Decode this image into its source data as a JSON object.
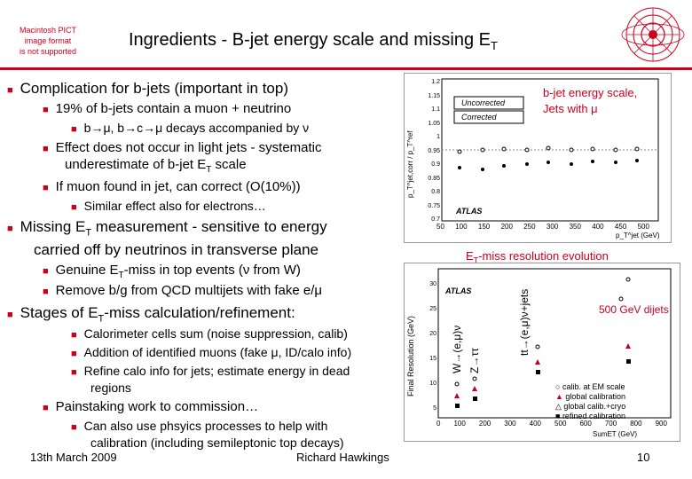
{
  "slide": {
    "title": "Ingredients - B-jet energy scale and missing E",
    "title_sub": "T",
    "logo_text": [
      "Macintosh PICT",
      "image format",
      "is not supported"
    ],
    "bullets": {
      "b1": "Complication for b-jets (important in top)",
      "b1_1": "19% of b-jets contain a muon + neutrino",
      "b1_1_1": "b→μ, b→c→μ decays accompanied by ν",
      "b1_2a": "Effect does not occur in light jets - systematic",
      "b1_2b": "underestimate of b-jet E",
      "b1_2b_sub": "T",
      "b1_2b_end": " scale",
      "b1_3": "If muon found in jet, can correct (O(10%))",
      "b1_3_1": "Similar effect also for electrons…",
      "b2a": "Missing E",
      "b2a_sub": "T",
      "b2a_end": " measurement - sensitive to energy",
      "b2b": "carried off by neutrinos in transverse plane",
      "b2_1": "Genuine E",
      "b2_1_sub": "T",
      "b2_1_end": "-miss in top events (ν from W)",
      "b2_2": "Remove b/g from QCD multijets with fake e/μ",
      "b3": "Stages of E",
      "b3_sub": "T",
      "b3_end": "-miss calculation/refinement:",
      "b3_1": "Calorimeter cells sum (noise suppression, calib)",
      "b3_2": "Addition of identified muons (fake μ, ID/calo info)",
      "b3_3a": "Refine calo info for jets; estimate energy in dead",
      "b3_3b": "regions",
      "b4": "Painstaking work to commission…",
      "b4_1a": "Can also use phsyics processes to help with",
      "b4_1b": "calibration (including semileptonic top decays)"
    },
    "footer": {
      "date": "13th March 2009",
      "author": "Richard Hawkings",
      "page": "10"
    },
    "fig1": {
      "caption_a": "b-jet energy scale,",
      "caption_b": "Jets with μ",
      "legend_1": "Uncorrected",
      "legend_2": "Corrected",
      "ylabel": "p_T^jet,corr / p_T^ref",
      "xlabel": "p_T^jet (GeV)",
      "atlas": "ATLAS",
      "yticks": [
        "1.2",
        "1.15",
        "1.1",
        "1.05",
        "1",
        "0.95",
        "0.9",
        "0.85",
        "0.8",
        "0.75",
        "0.7"
      ],
      "xticks": [
        "50",
        "100",
        "150",
        "200",
        "250",
        "300",
        "350",
        "400",
        "450",
        "500"
      ]
    },
    "fig2": {
      "caption": "E",
      "caption_sub": "T",
      "caption_end": "-miss resolution evolution",
      "annot_dijets": "500 GeV dijets",
      "rot_w": "W→(e,μ)ν",
      "rot_z": "Z→ττ",
      "rot_tt": "tt→(e,μ)ν+jets",
      "ylabel": "Final Resolution (GeV)",
      "xlabel": "SumET (GeV)",
      "atlas": "ATLAS",
      "yticks": [
        "30",
        "25",
        "20",
        "15",
        "10",
        "5"
      ],
      "xticks": [
        "0",
        "100",
        "200",
        "300",
        "400",
        "500",
        "600",
        "700",
        "800",
        "900"
      ],
      "legend": [
        "calib. at EM scale",
        "global calibration",
        "global calib.+cryo",
        "refined calibration"
      ]
    }
  }
}
